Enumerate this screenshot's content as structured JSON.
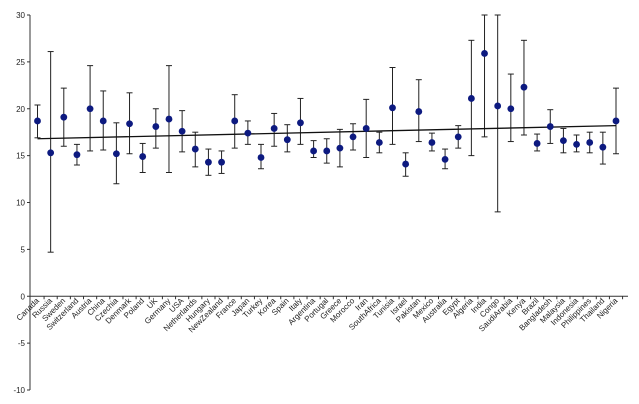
{
  "chart_data": {
    "type": "scatter",
    "title": "",
    "xlabel": "",
    "ylabel": "",
    "ylim": [
      -10,
      30
    ],
    "yticks": [
      -10,
      -5,
      0,
      5,
      10,
      15,
      20,
      25,
      30
    ],
    "grid": false,
    "legend": "none",
    "colors": {
      "point": "#0d1a80",
      "error_bar": "#222222",
      "trend": "#111111",
      "axis": "#333333"
    },
    "categories": [
      "Canada",
      "Russia",
      "Sweden",
      "Switzerland",
      "Austria",
      "China",
      "Czechia",
      "Denmark",
      "Poland",
      "UK",
      "Germany",
      "USA",
      "Netherlands",
      "Hungary",
      "NewZealand",
      "France",
      "Japan",
      "Turkey",
      "Korea",
      "Spain",
      "Italy",
      "Argentina",
      "Portugal",
      "Greece",
      "Morocco",
      "Iran",
      "SouthAfrica",
      "Tunisia",
      "Israel",
      "Pakistan",
      "Mexico",
      "Australia",
      "Egypt",
      "Algeria",
      "India",
      "Congo",
      "SaudiArabia",
      "Kenya",
      "Brazil",
      "Bangladesh",
      "Malaysia",
      "Indonesia",
      "Philippines",
      "Thailand",
      "Nigeria"
    ],
    "values": [
      18.7,
      15.3,
      19.1,
      15.1,
      20.0,
      18.7,
      15.2,
      18.4,
      14.9,
      18.1,
      18.9,
      17.6,
      15.7,
      14.3,
      14.3,
      18.7,
      17.4,
      14.8,
      17.9,
      16.7,
      18.5,
      15.5,
      15.5,
      15.8,
      17.0,
      17.9,
      16.4,
      20.1,
      14.1,
      19.7,
      16.4,
      14.6,
      17.0,
      21.1,
      25.9,
      20.3,
      20.0,
      22.3,
      16.3,
      18.1,
      16.6,
      16.2,
      16.4,
      15.9,
      18.7
    ],
    "error_low": [
      16.9,
      4.7,
      16.0,
      14.0,
      15.5,
      15.6,
      12.0,
      15.2,
      13.2,
      15.8,
      13.2,
      15.4,
      13.8,
      12.9,
      13.1,
      15.8,
      16.2,
      13.6,
      16.0,
      15.4,
      16.2,
      14.8,
      14.2,
      13.8,
      15.6,
      14.8,
      15.3,
      16.2,
      12.8,
      16.5,
      15.5,
      13.6,
      15.8,
      15.0,
      17.0,
      9.0,
      16.5,
      17.2,
      15.5,
      16.3,
      15.3,
      15.4,
      15.3,
      14.1,
      15.2
    ],
    "error_high": [
      20.4,
      26.1,
      22.2,
      16.2,
      24.6,
      21.9,
      18.5,
      21.7,
      16.3,
      20.0,
      24.6,
      19.8,
      17.5,
      15.7,
      15.5,
      21.5,
      18.7,
      16.2,
      19.5,
      18.3,
      21.1,
      16.6,
      16.8,
      17.8,
      18.4,
      21.0,
      17.5,
      24.4,
      15.3,
      23.1,
      17.4,
      15.7,
      18.2,
      27.3,
      30,
      30,
      23.7,
      27.3,
      17.3,
      19.9,
      17.9,
      17.2,
      17.5,
      17.5,
      22.2
    ],
    "trend": {
      "y_start": 16.8,
      "y_end": 18.2
    }
  }
}
